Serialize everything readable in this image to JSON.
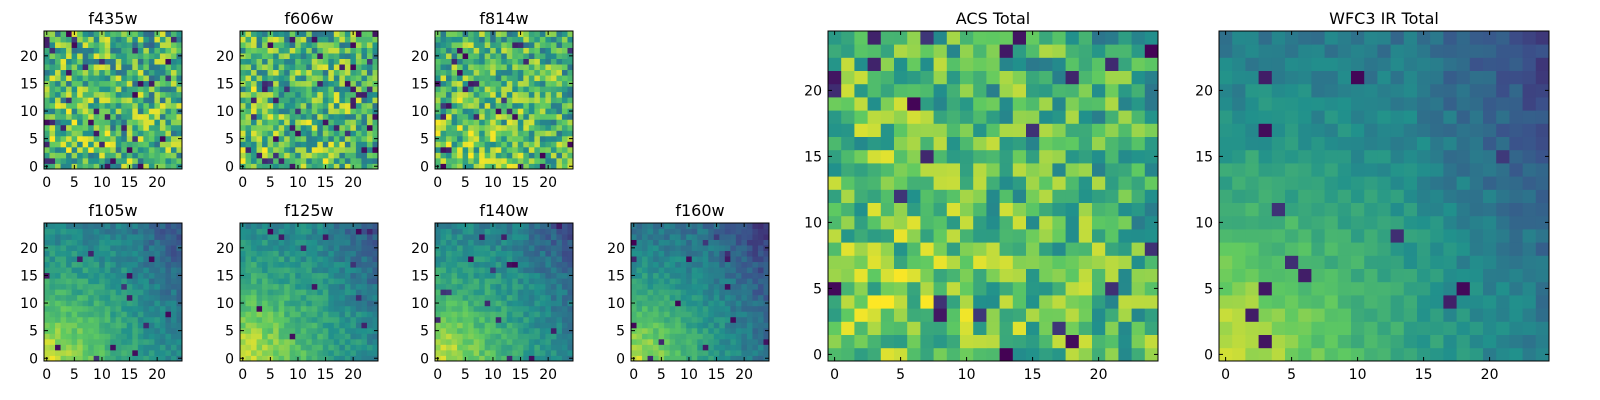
{
  "figure": {
    "colormap_name": "viridis",
    "colormap_stops": [
      "#440154",
      "#3b528b",
      "#21918c",
      "#5ec962",
      "#fde725"
    ]
  },
  "chart_data": [
    {
      "type": "heatmap",
      "title": "f435w",
      "grid_size": 25,
      "xlim": [
        0,
        24
      ],
      "ylim": [
        0,
        24
      ],
      "xticks": [
        0,
        5,
        10,
        15,
        20
      ],
      "yticks": [
        0,
        5,
        10,
        15,
        20
      ],
      "seed": 11,
      "pattern": "noisy",
      "gradient": 0.1,
      "noise": 0.45,
      "base": 0.62,
      "dark_spots": 0.05
    },
    {
      "type": "heatmap",
      "title": "f606w",
      "grid_size": 25,
      "xlim": [
        0,
        24
      ],
      "ylim": [
        0,
        24
      ],
      "xticks": [
        0,
        5,
        10,
        15,
        20
      ],
      "yticks": [
        0,
        5,
        10,
        15,
        20
      ],
      "seed": 23,
      "pattern": "noisy",
      "gradient": 0.12,
      "noise": 0.42,
      "base": 0.63,
      "dark_spots": 0.06
    },
    {
      "type": "heatmap",
      "title": "f814w",
      "grid_size": 25,
      "xlim": [
        0,
        24
      ],
      "ylim": [
        0,
        24
      ],
      "xticks": [
        0,
        5,
        10,
        15,
        20
      ],
      "yticks": [
        0,
        5,
        10,
        15,
        20
      ],
      "seed": 37,
      "pattern": "noisy",
      "gradient": 0.14,
      "noise": 0.4,
      "base": 0.62,
      "dark_spots": 0.05
    },
    {
      "type": "heatmap",
      "title": "f105w",
      "grid_size": 25,
      "xlim": [
        0,
        24
      ],
      "ylim": [
        0,
        24
      ],
      "xticks": [
        0,
        5,
        10,
        15,
        20
      ],
      "yticks": [
        0,
        5,
        10,
        15,
        20
      ],
      "seed": 41,
      "pattern": "smooth",
      "gradient": 0.55,
      "noise": 0.16,
      "base": 0.4,
      "dark_spots": 0.02
    },
    {
      "type": "heatmap",
      "title": "f125w",
      "grid_size": 25,
      "xlim": [
        0,
        24
      ],
      "ylim": [
        0,
        24
      ],
      "xticks": [
        0,
        5,
        10,
        15,
        20
      ],
      "yticks": [
        0,
        5,
        10,
        15,
        20
      ],
      "seed": 53,
      "pattern": "smooth",
      "gradient": 0.55,
      "noise": 0.18,
      "base": 0.42,
      "dark_spots": 0.02
    },
    {
      "type": "heatmap",
      "title": "f140w",
      "grid_size": 25,
      "xlim": [
        0,
        24
      ],
      "ylim": [
        0,
        24
      ],
      "xticks": [
        0,
        5,
        10,
        15,
        20
      ],
      "yticks": [
        0,
        5,
        10,
        15,
        20
      ],
      "seed": 67,
      "pattern": "smooth",
      "gradient": 0.55,
      "noise": 0.17,
      "base": 0.4,
      "dark_spots": 0.02
    },
    {
      "type": "heatmap",
      "title": "f160w",
      "grid_size": 25,
      "xlim": [
        0,
        24
      ],
      "ylim": [
        0,
        24
      ],
      "xticks": [
        0,
        5,
        10,
        15,
        20
      ],
      "yticks": [
        0,
        5,
        10,
        15,
        20
      ],
      "seed": 79,
      "pattern": "smooth",
      "gradient": 0.6,
      "noise": 0.15,
      "base": 0.33,
      "dark_spots": 0.03
    },
    {
      "type": "heatmap",
      "title": "ACS Total",
      "grid_size": 25,
      "xlim": [
        0,
        24
      ],
      "ylim": [
        0,
        24
      ],
      "xticks": [
        0,
        5,
        10,
        15,
        20
      ],
      "yticks": [
        0,
        5,
        10,
        15,
        20
      ],
      "seed": 97,
      "pattern": "noisy",
      "gradient": 0.2,
      "noise": 0.35,
      "base": 0.6,
      "dark_spots": 0.04
    },
    {
      "type": "heatmap",
      "title": "WFC3 IR Total",
      "grid_size": 25,
      "xlim": [
        0,
        24
      ],
      "ylim": [
        0,
        24
      ],
      "xticks": [
        0,
        5,
        10,
        15,
        20
      ],
      "yticks": [
        0,
        5,
        10,
        15,
        20
      ],
      "seed": 109,
      "pattern": "smooth",
      "gradient": 0.6,
      "noise": 0.13,
      "base": 0.36,
      "dark_spots": 0.03
    }
  ]
}
